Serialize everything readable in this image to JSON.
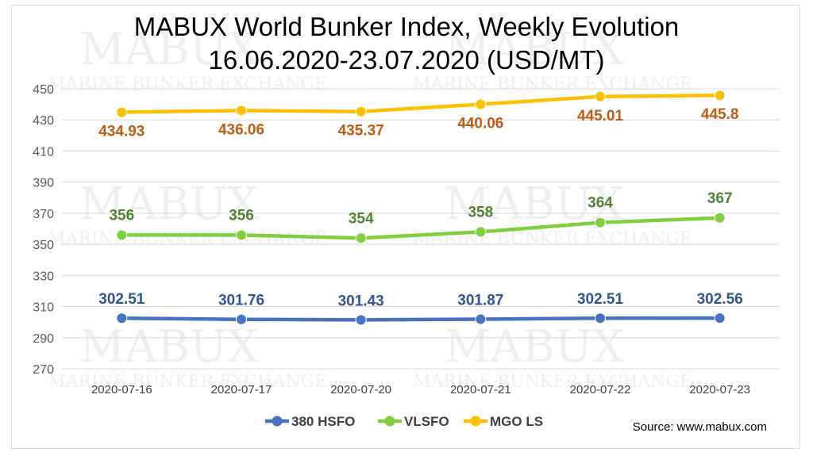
{
  "chart_data": {
    "type": "line",
    "title": "MABUX World Bunker Index, Weekly Evolution",
    "subtitle": "16.06.2020-23.07.2020 (USD/MT)",
    "categories": [
      "2020-07-16",
      "2020-07-17",
      "2020-07-20",
      "2020-07-21",
      "2020-07-22",
      "2020-07-23"
    ],
    "series": [
      {
        "name": "380 HSFO",
        "color": "#4472c4",
        "label_color": "#2f5597",
        "values": [
          302.51,
          301.76,
          301.43,
          301.87,
          302.51,
          302.56
        ],
        "labels": [
          "302.51",
          "301.76",
          "301.43",
          "301.87",
          "302.51",
          "302.56"
        ]
      },
      {
        "name": "VLSFO",
        "color": "#7ed13c",
        "label_color": "#548235",
        "values": [
          356,
          356,
          354,
          358,
          364,
          367
        ],
        "labels": [
          "356",
          "356",
          "354",
          "358",
          "364",
          "367"
        ]
      },
      {
        "name": "MGO LS",
        "color": "#ffc000",
        "label_color": "#c55a11",
        "values": [
          434.93,
          436.06,
          435.37,
          440.06,
          445.01,
          445.8
        ],
        "labels": [
          "434.93",
          "436.06",
          "435.37",
          "440.06",
          "445.01",
          "445.8"
        ]
      }
    ],
    "ylim": [
      270,
      450
    ],
    "yticks": [
      "450",
      "430",
      "410",
      "390",
      "370",
      "350",
      "330",
      "310",
      "290",
      "270"
    ],
    "grid": true,
    "legend": "bottom",
    "xlabel": "",
    "ylabel": ""
  },
  "source": "Source: www.mabux.com",
  "watermark": {
    "brand": "MABUX",
    "tagline": "MARINE BUNKER EXCHANGE"
  }
}
